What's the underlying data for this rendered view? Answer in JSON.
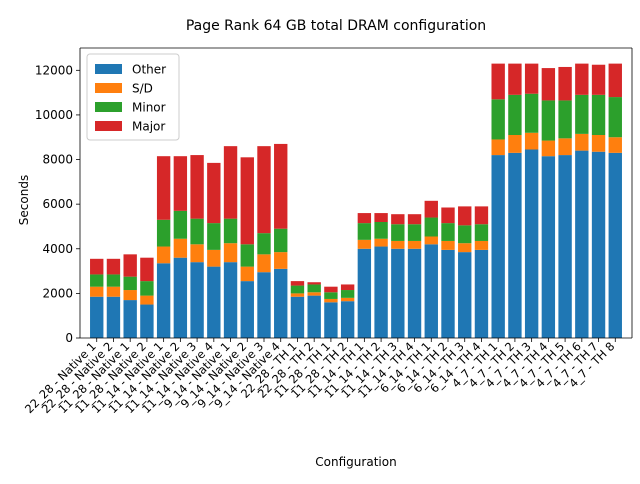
{
  "chart_data": {
    "type": "bar",
    "stacked": true,
    "title": "Page Rank 64 GB total DRAM configuration",
    "xlabel": "Configuration",
    "ylabel": "Seconds",
    "ylim": [
      0,
      13000
    ],
    "yticks": [
      0,
      2000,
      4000,
      6000,
      8000,
      10000,
      12000
    ],
    "grid": false,
    "legend_position": "upper-left",
    "categories": [
      "22_28 - Native 1",
      "22_28 - Native 2",
      "11_28 - Native 1",
      "11_28 - Native 2",
      "11_14 - Native 1",
      "11_14 - Native 2",
      "11_14 - Native 3",
      "11_14 - Native 4",
      "9_14 - Native 1",
      "9_14 - Native 2",
      "9_14 - Native 3",
      "9_14 - Native 4",
      "22_28 - TH 1",
      "22_28 - TH 2",
      "11_28 - TH 1",
      "11_28 - TH 2",
      "11_14 - TH 1",
      "11_14 - TH 2",
      "11_14 - TH 3",
      "11_14 - TH 4",
      "6_14 - TH 1",
      "6_14 - TH 2",
      "6_14 - TH 3",
      "6_14 - TH 4",
      "4_7 - TH 1",
      "4_7 - TH 2",
      "4_7 - TH 3",
      "4_7 - TH 4",
      "4_7 - TH 5",
      "4_7 - TH 6",
      "4_7 - TH 7",
      "4_7 - TH 8"
    ],
    "series": [
      {
        "name": "Other",
        "color": "#1f77b4",
        "values": [
          1850,
          1850,
          1700,
          1500,
          3350,
          3600,
          3400,
          3200,
          3400,
          2550,
          2950,
          3100,
          1850,
          1900,
          1600,
          1650,
          4000,
          4100,
          4000,
          4000,
          4200,
          3950,
          3850,
          3950,
          8200,
          8300,
          8450,
          8150,
          8200,
          8400,
          8350,
          8300
        ]
      },
      {
        "name": "S/D",
        "color": "#ff7f0e",
        "values": [
          450,
          450,
          450,
          400,
          750,
          850,
          800,
          750,
          850,
          650,
          800,
          750,
          150,
          150,
          150,
          150,
          400,
          350,
          350,
          350,
          350,
          400,
          400,
          400,
          700,
          800,
          750,
          700,
          750,
          750,
          750,
          700
        ]
      },
      {
        "name": "Minor",
        "color": "#2ca02c",
        "values": [
          550,
          550,
          600,
          650,
          1200,
          1250,
          1150,
          1200,
          1100,
          1000,
          950,
          1050,
          350,
          350,
          300,
          350,
          750,
          750,
          750,
          750,
          850,
          800,
          800,
          750,
          1800,
          1800,
          1750,
          1800,
          1700,
          1750,
          1800,
          1800
        ]
      },
      {
        "name": "Major",
        "color": "#d62728",
        "values": [
          700,
          700,
          1000,
          1050,
          2850,
          2450,
          2850,
          2700,
          3250,
          3900,
          3900,
          3800,
          200,
          100,
          250,
          250,
          450,
          400,
          450,
          450,
          750,
          700,
          850,
          800,
          1600,
          1400,
          1350,
          1450,
          1500,
          1400,
          1350,
          1500
        ]
      }
    ]
  }
}
